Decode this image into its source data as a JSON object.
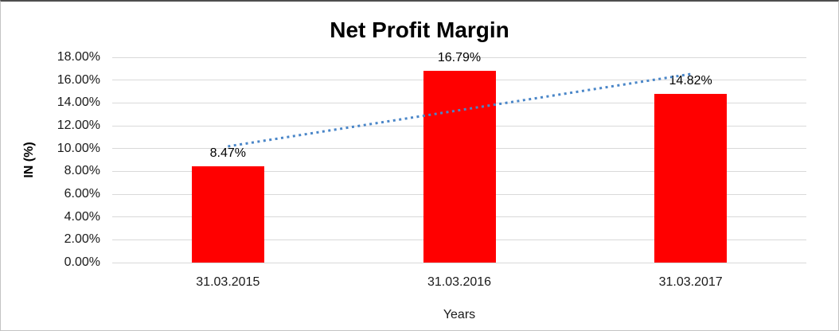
{
  "chart_data": {
    "type": "bar",
    "title": "Net Profit Margin",
    "categories": [
      "31.03.2015",
      "31.03.2016",
      "31.03.2017"
    ],
    "series": [
      {
        "name": "Net Profit Margin",
        "values": [
          8.47,
          16.79,
          14.82
        ],
        "color": "#ff0000"
      }
    ],
    "data_labels": [
      "8.47%",
      "16.79%",
      "14.82%"
    ],
    "xlabel": "Years",
    "ylabel": "IN (%)",
    "ylim": [
      0,
      18
    ],
    "ytick_step": 2,
    "ytick_labels": [
      "0.00%",
      "2.00%",
      "4.00%",
      "6.00%",
      "8.00%",
      "10.00%",
      "12.00%",
      "14.00%",
      "16.00%",
      "18.00%"
    ],
    "grid": true,
    "gridline_color": "#d9d9d9",
    "legend": "none",
    "trendline": {
      "type": "linear",
      "style": "dotted",
      "color": "#4a86c8",
      "start_value": 10.19,
      "end_value": 16.53
    }
  }
}
